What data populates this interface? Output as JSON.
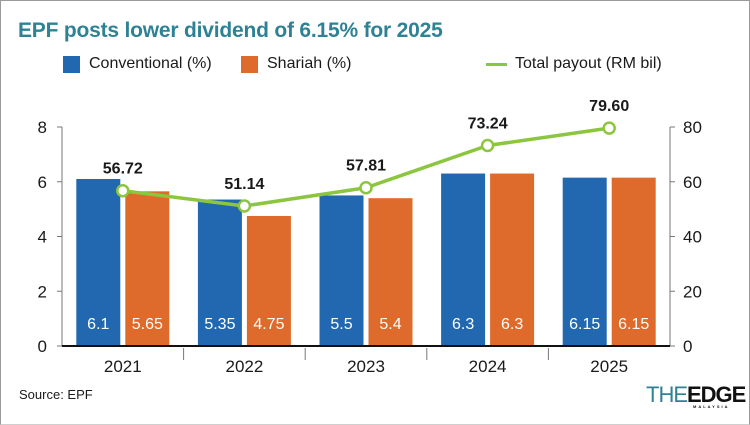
{
  "title": "EPF posts lower dividend of 6.15% for 2025",
  "legend": {
    "conventional": "Conventional (%)",
    "shariah": "Shariah (%)",
    "total": "Total payout (RM bil)"
  },
  "colors": {
    "title": "#2e8296",
    "conventional": "#2268b0",
    "shariah": "#de6a2c",
    "total": "#8cc63f"
  },
  "source": "Source: EPF",
  "logo": {
    "the": "THE",
    "edge": "EDGE",
    "sub": "MALAYSIA"
  },
  "chart_data": {
    "type": "bar",
    "title": "EPF posts lower dividend of 6.15% for 2025",
    "categories": [
      "2021",
      "2022",
      "2023",
      "2024",
      "2025"
    ],
    "series": [
      {
        "name": "Conventional (%)",
        "type": "bar",
        "axis": "left",
        "values": [
          6.1,
          5.35,
          5.5,
          6.3,
          6.15
        ],
        "labels": [
          "6.1",
          "5.35",
          "5.5",
          "6.3",
          "6.15"
        ]
      },
      {
        "name": "Shariah (%)",
        "type": "bar",
        "axis": "left",
        "values": [
          5.65,
          4.75,
          5.4,
          6.3,
          6.15
        ],
        "labels": [
          "5.65",
          "4.75",
          "5.4",
          "6.3",
          "6.15"
        ]
      },
      {
        "name": "Total payout (RM bil)",
        "type": "line",
        "axis": "right",
        "values": [
          56.72,
          51.14,
          57.81,
          73.24,
          79.6
        ],
        "labels": [
          "56.72",
          "51.14",
          "57.81",
          "73.24",
          "79.60"
        ]
      }
    ],
    "y_left": {
      "range": [
        0,
        8
      ],
      "ticks": [
        "0",
        "2",
        "4",
        "6",
        "8"
      ]
    },
    "y_right": {
      "range": [
        0,
        80
      ],
      "ticks": [
        "0",
        "20",
        "40",
        "60",
        "80"
      ]
    },
    "xlabel": "",
    "ylabel": "",
    "grid": false,
    "legend_position": "top"
  }
}
